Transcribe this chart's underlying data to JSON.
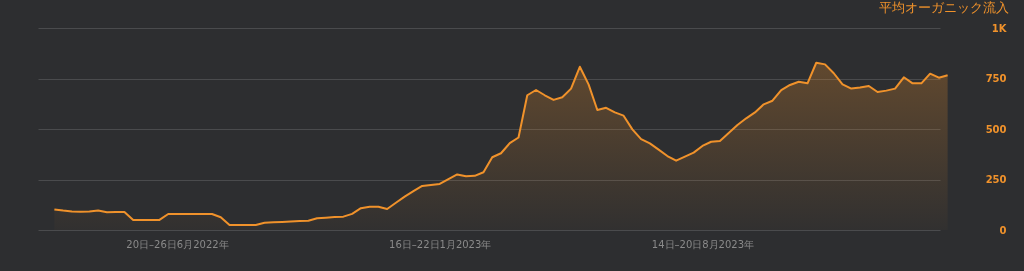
{
  "chart_data": {
    "type": "area",
    "ylabel": "平均オーガニック流入",
    "categories": [
      null,
      null,
      null,
      null,
      null,
      null,
      null,
      null,
      null,
      null,
      null,
      null,
      null,
      null,
      "20日–26日6月2022年",
      null,
      null,
      null,
      null,
      null,
      null,
      null,
      null,
      null,
      null,
      null,
      null,
      null,
      null,
      null,
      null,
      null,
      null,
      null,
      null,
      null,
      null,
      null,
      null,
      null,
      null,
      null,
      null,
      null,
      "16日–22日1月2023年",
      null,
      null,
      null,
      null,
      null,
      null,
      null,
      null,
      null,
      null,
      null,
      null,
      null,
      null,
      null,
      null,
      null,
      null,
      null,
      null,
      null,
      null,
      null,
      null,
      null,
      null,
      null,
      null,
      null,
      "14日–20日8月2023年",
      null,
      null,
      null,
      null,
      null,
      null,
      null,
      null,
      null,
      null,
      null,
      null,
      null,
      null,
      null,
      null,
      null,
      null,
      null,
      null,
      null,
      null,
      null,
      null,
      null,
      null,
      null,
      null
    ],
    "series": [
      {
        "color": "#f0922b",
        "values": [
          102,
          96,
          91,
          90,
          91,
          96,
          88,
          89,
          89,
          50,
          50,
          50,
          50,
          79,
          79,
          79,
          79,
          79,
          79,
          63,
          25,
          25,
          25,
          25,
          36,
          38,
          40,
          42,
          44,
          46,
          58,
          61,
          64,
          66,
          80,
          108,
          115,
          115,
          104,
          135,
          165,
          192,
          218,
          223,
          228,
          252,
          275,
          266,
          268,
          286,
          360,
          380,
          430,
          458,
          667,
          693,
          667,
          644,
          657,
          700,
          808,
          721,
          594,
          605,
          582,
          566,
          498,
          450,
          429,
          398,
          366,
          343,
          363,
          383,
          416,
          437,
          441,
          480,
          520,
          553,
          582,
          622,
          640,
          693,
          718,
          734,
          726,
          828,
          820,
          776,
          721,
          700,
          705,
          713,
          683,
          690,
          700,
          756,
          726,
          726,
          774,
          754,
          766
        ]
      }
    ],
    "ylim": [
      0,
      1000
    ],
    "yticks": [
      0,
      250,
      500,
      750,
      {
        "value": 1000,
        "label": "1K"
      }
    ],
    "grid": "y",
    "marker": "none",
    "line_style": "solid"
  }
}
